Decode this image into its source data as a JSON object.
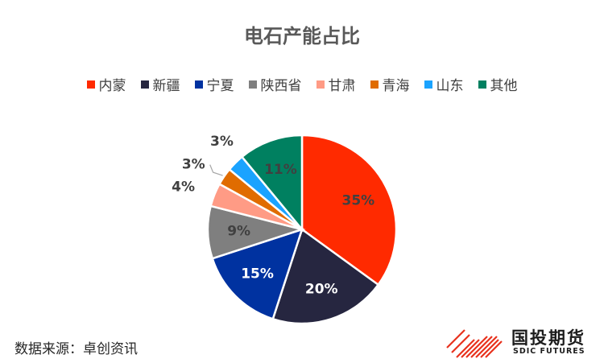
{
  "chart_data": {
    "type": "pie",
    "title": "电石产能占比",
    "series": [
      {
        "name": "内蒙",
        "value": 35,
        "label": "35%",
        "color": "#ff2a00",
        "label_color": "#404040"
      },
      {
        "name": "新疆",
        "value": 20,
        "label": "20%",
        "color": "#262640",
        "label_color": "#ffffff"
      },
      {
        "name": "宁夏",
        "value": 15,
        "label": "15%",
        "color": "#0032a0",
        "label_color": "#ffffff"
      },
      {
        "name": "陕西省",
        "value": 9,
        "label": "9%",
        "color": "#7f7f7f",
        "label_color": "#404040"
      },
      {
        "name": "甘肃",
        "value": 4,
        "label": "4%",
        "color": "#ff9b85",
        "label_color": "#404040"
      },
      {
        "name": "青海",
        "value": 3,
        "label": "3%",
        "color": "#e06c00",
        "label_color": "#404040"
      },
      {
        "name": "山东",
        "value": 3,
        "label": "3%",
        "color": "#1aa3ff",
        "label_color": "#404040"
      },
      {
        "name": "其他",
        "value": 11,
        "label": "11%",
        "color": "#008060",
        "label_color": "#404040"
      }
    ],
    "legend_position": "top"
  },
  "footer": {
    "source": "数据来源：卓创资讯",
    "logo_name": "国投期货",
    "logo_en": "SDIC FUTURES"
  }
}
